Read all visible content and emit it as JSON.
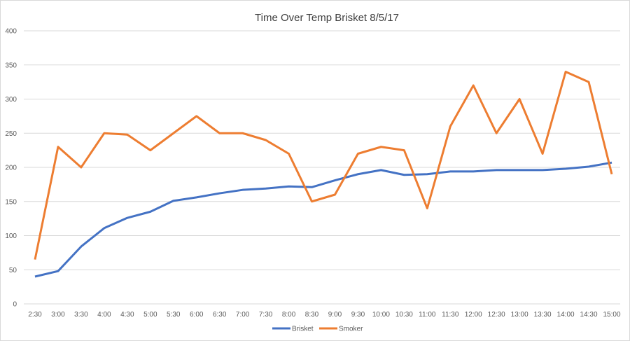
{
  "chart_data": {
    "type": "line",
    "title": "Time Over Temp Brisket 8/5/17",
    "xlabel": "",
    "ylabel": "",
    "ylim": [
      0,
      400
    ],
    "yticks": [
      0,
      50,
      100,
      150,
      200,
      250,
      300,
      350,
      400
    ],
    "grid": true,
    "legend_position": "bottom",
    "categories": [
      "2:30",
      "3:00",
      "3:30",
      "4:00",
      "4:30",
      "5:00",
      "5:30",
      "6:00",
      "6:30",
      "7:00",
      "7:30",
      "8:00",
      "8:30",
      "9:00",
      "9:30",
      "10:00",
      "10:30",
      "11:00",
      "11:30",
      "12:00",
      "12:30",
      "13:00",
      "13:30",
      "14:00",
      "14:30",
      "15:00"
    ],
    "series": [
      {
        "name": "Brisket",
        "color": "#4472C4",
        "values": [
          40,
          48,
          84,
          111,
          126,
          135,
          151,
          156,
          162,
          167,
          169,
          172,
          171,
          181,
          190,
          196,
          189,
          190,
          194,
          194,
          196,
          196,
          196,
          198,
          201,
          207
        ]
      },
      {
        "name": "Smoker",
        "color": "#ED7D31",
        "values": [
          65,
          230,
          200,
          250,
          248,
          225,
          250,
          275,
          250,
          250,
          240,
          220,
          150,
          160,
          220,
          230,
          225,
          140,
          260,
          320,
          250,
          300,
          220,
          340,
          325,
          190
        ]
      }
    ]
  }
}
